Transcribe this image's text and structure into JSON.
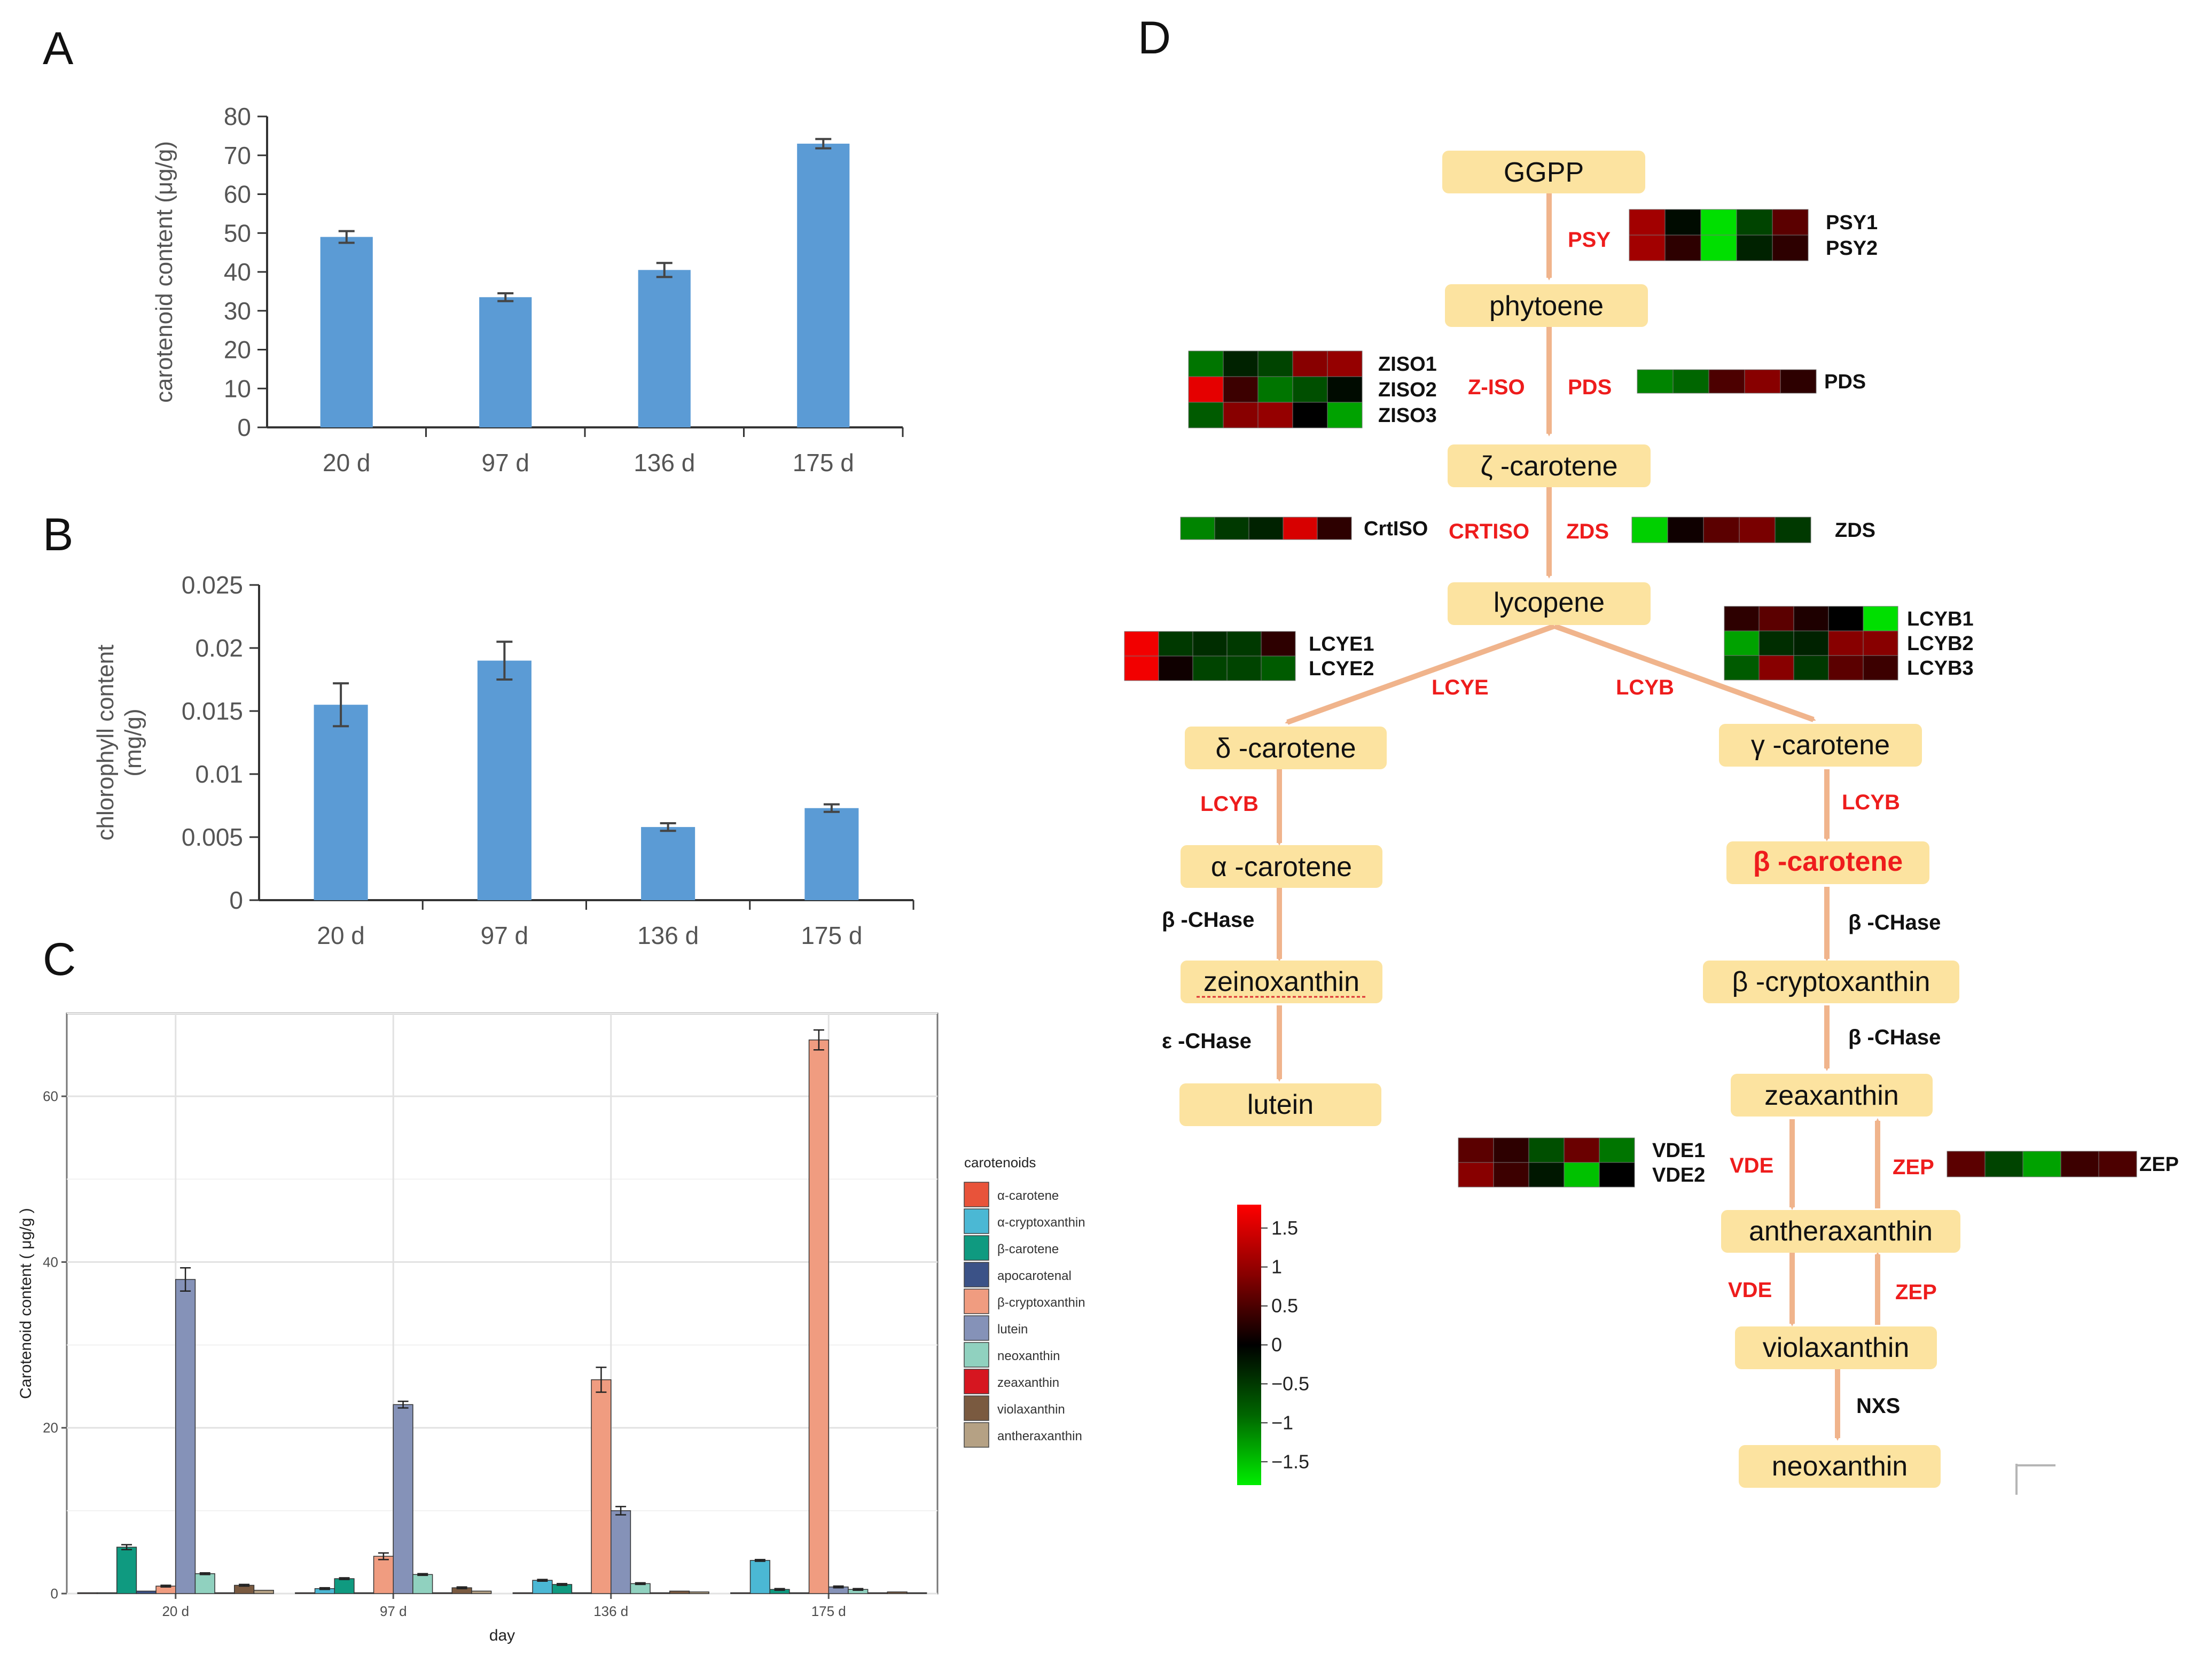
{
  "colors": {
    "bar_blue": "#5b9bd5",
    "axis": "#333333",
    "node_fill": "#fce3a0",
    "arrow": "#f0b48c",
    "enzyme_red": "#ee1c1c",
    "heat_scale": [
      "#00ee00",
      "#006600",
      "#000000",
      "#880000",
      "#ff0000"
    ]
  },
  "panels": {
    "A": {
      "label": "A"
    },
    "B": {
      "label": "B"
    },
    "C": {
      "label": "C"
    },
    "D": {
      "label": "D"
    }
  },
  "chart_data": [
    {
      "id": "A",
      "type": "bar",
      "categories": [
        "20 d",
        "97 d",
        "136 d",
        "175 d"
      ],
      "values": [
        49,
        33.5,
        40.5,
        73
      ],
      "errors": [
        1.5,
        1,
        1.8,
        1.2
      ],
      "ylabel": "carotenoid content (μg/g)",
      "ylim": [
        0,
        80
      ],
      "yticks": [
        0,
        10,
        20,
        30,
        40,
        50,
        60,
        70,
        80
      ],
      "ytick_labels": [
        "0",
        "10",
        "20",
        "30",
        "40",
        "50",
        "60",
        "70",
        "80"
      ]
    },
    {
      "id": "B",
      "type": "bar",
      "categories": [
        "20 d",
        "97 d",
        "136 d",
        "175 d"
      ],
      "values": [
        0.0155,
        0.019,
        0.0058,
        0.0073
      ],
      "errors": [
        0.0017,
        0.0015,
        0.0003,
        0.0003
      ],
      "ylabel_lines": [
        "chlorophyll content",
        "(mg/g)"
      ],
      "ylim": [
        0,
        0.025
      ],
      "yticks": [
        0,
        0.005,
        0.01,
        0.015,
        0.02,
        0.025
      ],
      "ytick_labels": [
        "0",
        "0.005",
        "0.01",
        "0.015",
        "0.02",
        "0.025"
      ]
    },
    {
      "id": "C",
      "type": "bar",
      "categories": [
        "20 d",
        "97 d",
        "136 d",
        "175 d"
      ],
      "xlabel": "day",
      "ylabel": "Carotenoid content ( μg/g )",
      "ylim": [
        0,
        70
      ],
      "yticks": [
        0,
        20,
        40,
        60
      ],
      "ytick_labels": [
        "0",
        "20",
        "40",
        "60"
      ],
      "legend_title": "carotenoids",
      "legend_position": "right",
      "series": [
        {
          "name": "α-carotene",
          "color": "#e8533a",
          "values": [
            0.1,
            0.1,
            0.1,
            0.1
          ],
          "errors": [
            0,
            0,
            0,
            0
          ]
        },
        {
          "name": "α-cryptoxanthin",
          "color": "#4bb8d4",
          "values": [
            0.1,
            0.6,
            1.6,
            4.0
          ],
          "errors": [
            0,
            0.1,
            0.1,
            0.1
          ]
        },
        {
          "name": "β-carotene",
          "color": "#0f9a80",
          "values": [
            5.6,
            1.8,
            1.1,
            0.5
          ],
          "errors": [
            0.3,
            0.1,
            0.1,
            0.1
          ]
        },
        {
          "name": "apocarotenal",
          "color": "#3b5287",
          "values": [
            0.3,
            0.1,
            0.1,
            0.1
          ],
          "errors": [
            0,
            0,
            0,
            0
          ]
        },
        {
          "name": "β-cryptoxanthin",
          "color": "#f09c80",
          "values": [
            0.9,
            4.5,
            25.8,
            66.8
          ],
          "errors": [
            0.1,
            0.4,
            1.5,
            1.2
          ]
        },
        {
          "name": "lutein",
          "color": "#8592b8",
          "values": [
            37.9,
            22.8,
            10.0,
            0.8
          ],
          "errors": [
            1.4,
            0.4,
            0.5,
            0.1
          ]
        },
        {
          "name": "neoxanthin",
          "color": "#90d1bf",
          "values": [
            2.4,
            2.3,
            1.2,
            0.5
          ],
          "errors": [
            0.1,
            0.1,
            0.1,
            0.1
          ]
        },
        {
          "name": "zeaxanthin",
          "color": "#d61620",
          "values": [
            0.1,
            0.1,
            0.1,
            0.1
          ],
          "errors": [
            0,
            0,
            0,
            0
          ]
        },
        {
          "name": "violaxanthin",
          "color": "#7a5a40",
          "values": [
            1.0,
            0.7,
            0.3,
            0.2
          ],
          "errors": [
            0.1,
            0.1,
            0,
            0
          ]
        },
        {
          "name": "antheraxanthin",
          "color": "#b5a184",
          "values": [
            0.4,
            0.3,
            0.2,
            0.1
          ],
          "errors": [
            0,
            0,
            0,
            0
          ]
        }
      ]
    }
  ],
  "pathway": {
    "nodes": [
      {
        "id": "ggpp",
        "label": "GGPP"
      },
      {
        "id": "phytoene",
        "label": "phytoene"
      },
      {
        "id": "zeta",
        "label": "ζ -carotene"
      },
      {
        "id": "lycopene",
        "label": "lycopene"
      },
      {
        "id": "delta",
        "label": "δ -carotene"
      },
      {
        "id": "gamma",
        "label": "γ -carotene"
      },
      {
        "id": "alpha",
        "label": "α -carotene"
      },
      {
        "id": "beta",
        "label": "β -carotene"
      },
      {
        "id": "zein",
        "label": "zeinoxanthin"
      },
      {
        "id": "bcrypt",
        "label": "β -cryptoxanthin"
      },
      {
        "id": "lutein",
        "label": "lutein"
      },
      {
        "id": "zeax",
        "label": "zeaxanthin"
      },
      {
        "id": "anthera",
        "label": "antheraxanthin"
      },
      {
        "id": "viola",
        "label": "violaxanthin"
      },
      {
        "id": "neox",
        "label": "neoxanthin"
      }
    ],
    "enzymes": [
      {
        "id": "psy",
        "label": "PSY"
      },
      {
        "id": "ziso",
        "label": "Z-ISO"
      },
      {
        "id": "pds",
        "label": "PDS"
      },
      {
        "id": "crtiso",
        "label": "CRTISO"
      },
      {
        "id": "zds",
        "label": "ZDS"
      },
      {
        "id": "lcye",
        "label": "LCYE"
      },
      {
        "id": "lcyb_branch",
        "label": "LCYB"
      },
      {
        "id": "lcyb_left",
        "label": "LCYB"
      },
      {
        "id": "lcyb_right",
        "label": "LCYB"
      },
      {
        "id": "bchase1",
        "label": "β -CHase"
      },
      {
        "id": "echase",
        "label": "ε -CHase"
      },
      {
        "id": "bchase2",
        "label": "β -CHase"
      },
      {
        "id": "bchase3",
        "label": "β -CHase"
      },
      {
        "id": "vde1",
        "label": "VDE"
      },
      {
        "id": "zep1",
        "label": "ZEP"
      },
      {
        "id": "vde2",
        "label": "VDE"
      },
      {
        "id": "zep2",
        "label": "ZEP"
      },
      {
        "id": "nxs",
        "label": "NXS"
      }
    ],
    "heatmaps": [
      {
        "id": "psy",
        "genes": [
          "PSY1",
          "PSY2"
        ],
        "values": [
          [
            1.1,
            -0.1,
            -1.7,
            -0.6,
            0.6
          ],
          [
            1.1,
            0.3,
            -1.7,
            -0.3,
            0.3
          ]
        ]
      },
      {
        "id": "ziso",
        "genes": [
          "ZISO1",
          "ZISO2",
          "ZISO3"
        ],
        "values": [
          [
            -1.0,
            -0.3,
            -0.6,
            0.9,
            1.0
          ],
          [
            1.6,
            0.4,
            -1.0,
            -0.7,
            -0.1
          ],
          [
            -0.8,
            0.9,
            1.0,
            0.0,
            -1.3
          ]
        ]
      },
      {
        "id": "pds",
        "genes": [
          "PDS"
        ],
        "values": [
          [
            -1.1,
            -0.9,
            0.5,
            0.9,
            0.3
          ]
        ]
      },
      {
        "id": "crtiso",
        "genes": [
          "CrtISO"
        ],
        "values": [
          [
            -1.1,
            -0.5,
            -0.3,
            1.5,
            0.3
          ]
        ]
      },
      {
        "id": "zds",
        "genes": [
          "ZDS"
        ],
        "values": [
          [
            -1.6,
            0.1,
            0.6,
            0.8,
            -0.5
          ]
        ]
      },
      {
        "id": "lcye",
        "genes": [
          "LCYE1",
          "LCYE2"
        ],
        "values": [
          [
            1.7,
            -0.5,
            -0.4,
            -0.5,
            0.3
          ],
          [
            1.7,
            0.1,
            -0.6,
            -0.6,
            -0.8
          ]
        ]
      },
      {
        "id": "lcyb",
        "genes": [
          "LCYB1",
          "LCYB2",
          "LCYB3"
        ],
        "values": [
          [
            0.3,
            0.6,
            0.2,
            0.0,
            -1.7
          ],
          [
            -1.3,
            -0.4,
            -0.3,
            0.9,
            0.9
          ],
          [
            -0.8,
            0.9,
            -0.5,
            0.6,
            0.4
          ]
        ]
      },
      {
        "id": "vde",
        "genes": [
          "VDE1",
          "VDE2"
        ],
        "values": [
          [
            0.6,
            0.3,
            -0.7,
            0.7,
            -1.0
          ],
          [
            0.9,
            0.4,
            -0.2,
            -1.5,
            0.0
          ]
        ]
      },
      {
        "id": "zep",
        "genes": [
          "ZEP"
        ],
        "values": [
          [
            0.6,
            -0.6,
            -1.3,
            0.4,
            0.5
          ]
        ]
      }
    ],
    "colorbar": {
      "range": [
        -1.8,
        1.8
      ],
      "ticks": [
        1.5,
        1,
        0.5,
        0,
        -0.5,
        -1,
        -1.5
      ],
      "tick_labels": [
        "1.5",
        "1",
        "0.5",
        "0",
        "−0.5",
        "−1",
        "−1.5"
      ]
    }
  }
}
